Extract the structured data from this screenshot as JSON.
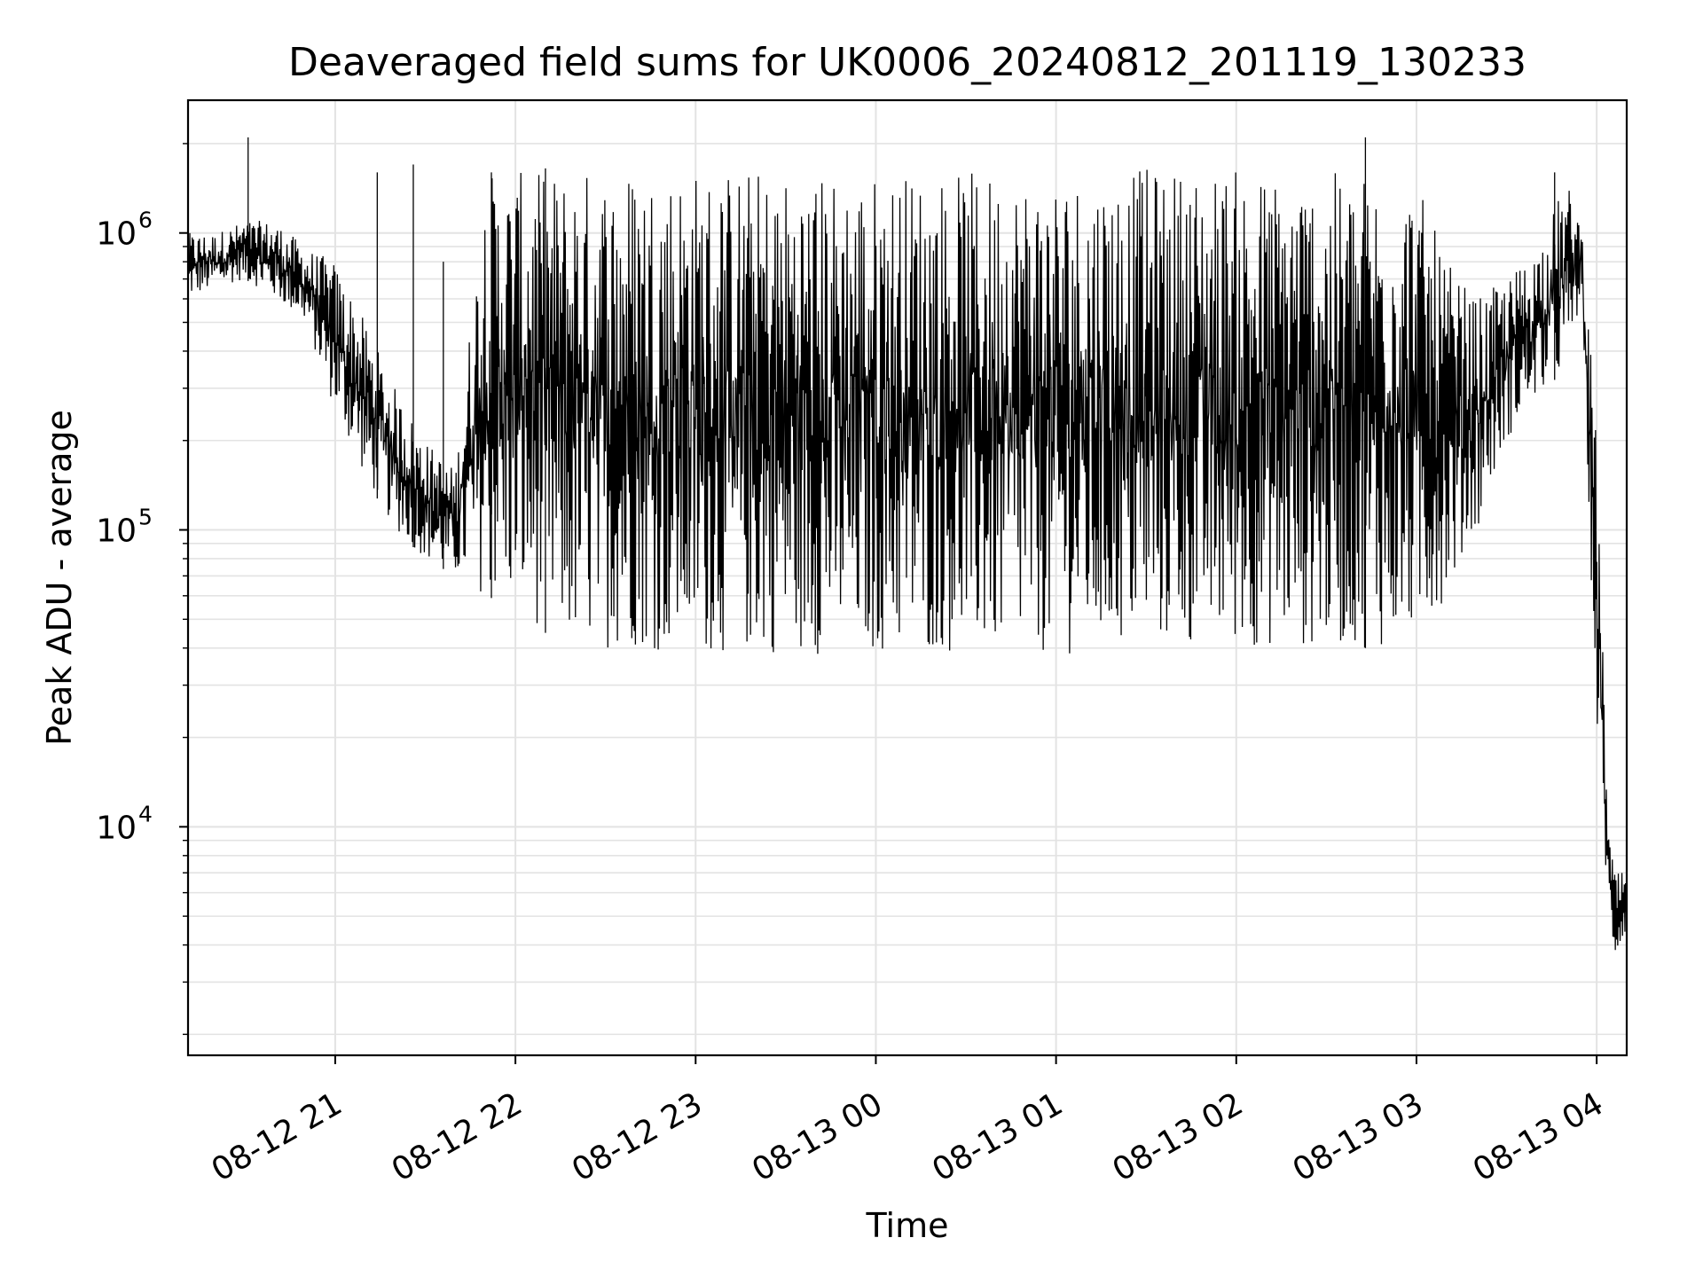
{
  "chart_data": {
    "type": "line",
    "title": "Deaveraged field sums for UK0006_20240812_201119_130233",
    "xlabel": "Time",
    "ylabel": "Peak ADU - average",
    "y_scale": "log",
    "ylim": [
      1700,
      2800000
    ],
    "xlim": [
      "2024-08-12 20:11",
      "2024-08-13 04:10"
    ],
    "grid": true,
    "legend": "none",
    "line_color": "#000000",
    "x_ticks": [
      {
        "value": "2024-08-12 21:00",
        "label": "08-12 21"
      },
      {
        "value": "2024-08-12 22:00",
        "label": "08-12 22"
      },
      {
        "value": "2024-08-12 23:00",
        "label": "08-12 23"
      },
      {
        "value": "2024-08-13 00:00",
        "label": "08-13 00"
      },
      {
        "value": "2024-08-13 01:00",
        "label": "08-13 01"
      },
      {
        "value": "2024-08-13 02:00",
        "label": "08-13 02"
      },
      {
        "value": "2024-08-13 03:00",
        "label": "08-13 03"
      },
      {
        "value": "2024-08-13 04:00",
        "label": "08-13 04"
      }
    ],
    "y_ticks": [
      {
        "value": 10000,
        "base": "10",
        "exp": "4"
      },
      {
        "value": 100000,
        "base": "10",
        "exp": "5"
      },
      {
        "value": 1000000,
        "base": "10",
        "exp": "6"
      }
    ],
    "series": [
      {
        "x": [
          "2024-08-12 20:11",
          "2024-08-12 20:20",
          "2024-08-12 20:30",
          "2024-08-12 20:40",
          "2024-08-12 20:50",
          "2024-08-12 21:00",
          "2024-08-12 21:10",
          "2024-08-12 21:20",
          "2024-08-12 21:30",
          "2024-08-12 21:40",
          "2024-08-12 21:50",
          "2024-08-12 22:00",
          "2024-08-12 22:10",
          "2024-08-12 22:20",
          "2024-08-12 22:30",
          "2024-08-12 22:40",
          "2024-08-12 22:50",
          "2024-08-12 23:00",
          "2024-08-12 23:10",
          "2024-08-12 23:20",
          "2024-08-12 23:30",
          "2024-08-12 23:40",
          "2024-08-12 23:50",
          "2024-08-13 00:00",
          "2024-08-13 00:10",
          "2024-08-13 00:20",
          "2024-08-13 00:30",
          "2024-08-13 00:40",
          "2024-08-13 00:50",
          "2024-08-13 01:00",
          "2024-08-13 01:10",
          "2024-08-13 01:20",
          "2024-08-13 01:30",
          "2024-08-13 01:40",
          "2024-08-13 01:50",
          "2024-08-13 02:00",
          "2024-08-13 02:10",
          "2024-08-13 02:20",
          "2024-08-13 02:30",
          "2024-08-13 02:40",
          "2024-08-13 02:50",
          "2024-08-13 03:00",
          "2024-08-13 03:10",
          "2024-08-13 03:20",
          "2024-08-13 03:30",
          "2024-08-13 03:40",
          "2024-08-13 03:50",
          "2024-08-13 03:55",
          "2024-08-13 04:00",
          "2024-08-13 04:02",
          "2024-08-13 04:04",
          "2024-08-13 04:06",
          "2024-08-13 04:08",
          "2024-08-13 04:10"
        ],
        "low": [
          600000,
          650000,
          700000,
          600000,
          500000,
          250000,
          150000,
          100000,
          80000,
          70000,
          60000,
          55000,
          45000,
          40000,
          40000,
          40000,
          38000,
          38000,
          38000,
          38000,
          38000,
          38000,
          38000,
          38000,
          38000,
          38000,
          38000,
          38000,
          38000,
          38000,
          38000,
          40000,
          40000,
          40000,
          40000,
          40000,
          40000,
          40000,
          40000,
          40000,
          40000,
          42000,
          60000,
          100000,
          200000,
          280000,
          350000,
          600000,
          20000,
          10000,
          5000,
          3500,
          4000,
          4500
        ],
        "high": [
          1000000,
          1000000,
          1100000,
          1100000,
          900000,
          800000,
          500000,
          300000,
          200000,
          160000,
          1600000,
          1600000,
          1600000,
          1650000,
          1650000,
          1700000,
          1700000,
          1650000,
          1650000,
          1650000,
          1600000,
          1600000,
          1600000,
          1600000,
          1600000,
          1600000,
          1600000,
          1600000,
          1600000,
          1600000,
          1600000,
          1650000,
          1650000,
          1650000,
          1650000,
          1650000,
          1600000,
          1600000,
          1600000,
          1600000,
          1600000,
          1500000,
          800000,
          600000,
          700000,
          900000,
          1500000,
          1100000,
          200000,
          40000,
          10000,
          7000,
          7000,
          7000
        ]
      }
    ],
    "spikes": [
      {
        "x": "2024-08-12 20:31",
        "y": 2100000
      },
      {
        "x": "2024-08-12 21:14",
        "y": 1600000
      },
      {
        "x": "2024-08-12 21:26",
        "y": 1700000
      },
      {
        "x": "2024-08-12 21:36",
        "y": 800000
      },
      {
        "x": "2024-08-12 21:52",
        "y": 1600000
      },
      {
        "x": "2024-08-12 22:10",
        "y": 1650000
      },
      {
        "x": "2024-08-13 02:43",
        "y": 2100000
      },
      {
        "x": "2024-08-13 03:46",
        "y": 1600000
      }
    ]
  }
}
